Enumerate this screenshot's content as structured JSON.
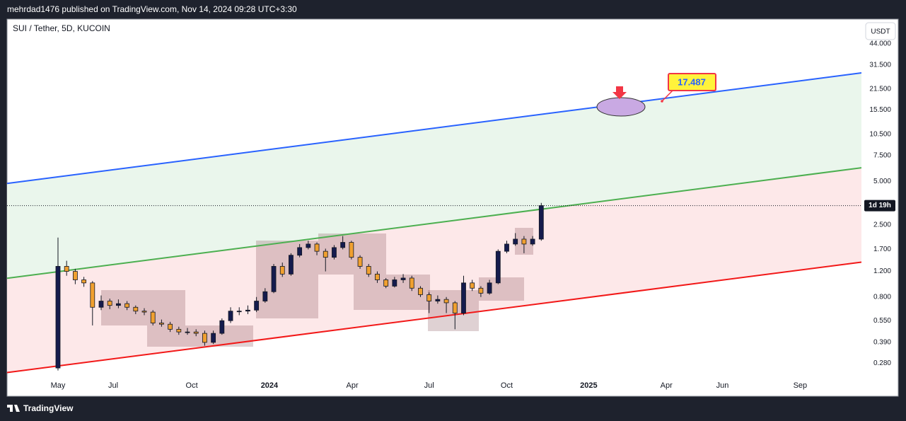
{
  "header": "mehrdad1476 published on TradingView.com, Nov 14, 2024 09:28 UTC+3:30",
  "footer": "TradingView",
  "chart_data": {
    "type": "candlestick",
    "title": "SUI / Tether, 5D, KUCOIN",
    "currency": "USDT",
    "countdown": "1d 19h",
    "annotation": "17.487",
    "x": [
      0,
      1,
      2,
      3,
      4,
      5,
      6,
      7,
      8,
      9,
      10,
      11,
      12,
      13,
      14,
      15,
      16,
      17,
      18,
      19,
      20,
      21,
      22,
      23,
      24,
      25,
      26,
      27,
      28,
      29,
      30,
      31,
      32,
      33,
      34,
      35,
      36,
      37,
      38,
      39,
      40,
      41,
      42,
      43,
      44,
      45,
      46,
      47,
      48,
      49,
      50,
      51,
      52,
      53,
      54,
      55,
      56
    ],
    "open": [
      0.26,
      1.3,
      1.2,
      1.05,
      1.0,
      0.68,
      0.75,
      0.7,
      0.72,
      0.68,
      0.64,
      0.63,
      0.53,
      0.52,
      0.48,
      0.46,
      0.46,
      0.45,
      0.39,
      0.45,
      0.55,
      0.64,
      0.64,
      0.65,
      0.75,
      0.87,
      1.3,
      1.15,
      1.55,
      1.75,
      1.85,
      1.65,
      1.5,
      1.75,
      1.9,
      1.5,
      1.3,
      1.15,
      1.05,
      0.95,
      1.05,
      1.08,
      0.92,
      0.83,
      0.75,
      0.77,
      0.73,
      0.62,
      1.0,
      0.92,
      0.85,
      1.0,
      1.65,
      1.85,
      2.0,
      1.85,
      2.0
    ],
    "high": [
      2.05,
      1.42,
      1.25,
      1.1,
      1.03,
      0.82,
      0.78,
      0.77,
      0.75,
      0.7,
      0.67,
      0.65,
      0.56,
      0.54,
      0.5,
      0.49,
      0.48,
      0.47,
      0.47,
      0.57,
      0.68,
      0.68,
      0.7,
      0.8,
      0.92,
      1.35,
      1.38,
      1.6,
      1.85,
      1.95,
      1.9,
      1.72,
      1.82,
      2.1,
      1.95,
      1.55,
      1.35,
      1.2,
      1.08,
      1.1,
      1.15,
      1.12,
      0.95,
      0.86,
      0.82,
      0.8,
      0.75,
      1.12,
      1.05,
      0.95,
      1.05,
      1.7,
      1.95,
      2.2,
      2.1,
      2.1,
      3.55
    ],
    "low": [
      0.25,
      1.12,
      0.98,
      0.94,
      0.51,
      0.65,
      0.66,
      0.67,
      0.65,
      0.61,
      0.6,
      0.51,
      0.5,
      0.46,
      0.44,
      0.44,
      0.43,
      0.37,
      0.38,
      0.44,
      0.53,
      0.6,
      0.61,
      0.63,
      0.73,
      0.85,
      1.1,
      1.12,
      1.5,
      1.7,
      1.55,
      1.2,
      1.45,
      1.7,
      1.45,
      1.25,
      1.1,
      1.0,
      0.92,
      0.93,
      1.0,
      0.88,
      0.8,
      0.62,
      0.72,
      0.62,
      0.48,
      0.6,
      0.88,
      0.8,
      0.83,
      0.98,
      1.6,
      1.8,
      1.6,
      1.8,
      1.95
    ],
    "close": [
      1.3,
      1.2,
      1.05,
      1.0,
      0.68,
      0.75,
      0.7,
      0.72,
      0.68,
      0.64,
      0.63,
      0.53,
      0.52,
      0.48,
      0.46,
      0.46,
      0.45,
      0.39,
      0.45,
      0.55,
      0.64,
      0.64,
      0.65,
      0.75,
      0.87,
      1.3,
      1.15,
      1.55,
      1.75,
      1.85,
      1.65,
      1.5,
      1.75,
      1.9,
      1.5,
      1.3,
      1.15,
      1.05,
      0.95,
      1.05,
      1.08,
      0.92,
      0.83,
      0.75,
      0.77,
      0.73,
      0.62,
      1.0,
      0.92,
      0.85,
      1.0,
      1.65,
      1.85,
      2.0,
      1.85,
      2.0,
      3.4
    ],
    "up_color": "#151b4d",
    "down_color": "#f0a030",
    "log_scale": true,
    "xlim": [
      -5.9,
      93.1
    ],
    "xticks": [
      {
        "value": 0,
        "label": "May"
      },
      {
        "value": 6.4,
        "label": "Jul"
      },
      {
        "value": 15.5,
        "label": "Oct"
      },
      {
        "value": 24.5,
        "label": "2024"
      },
      {
        "value": 34.1,
        "label": "Apr"
      },
      {
        "value": 43,
        "label": "Jul"
      },
      {
        "value": 52,
        "label": "Oct"
      },
      {
        "value": 61.5,
        "label": "2025"
      },
      {
        "value": 70.5,
        "label": "Apr"
      },
      {
        "value": 77,
        "label": "Jun"
      },
      {
        "value": 86,
        "label": "Sep"
      }
    ],
    "ylim": [
      0.22,
      63
    ],
    "yticks": [
      {
        "value": 44,
        "label": "44.000"
      },
      {
        "value": 31.5,
        "label": "31.500"
      },
      {
        "value": 21.5,
        "label": "21.500"
      },
      {
        "value": 15.5,
        "label": "15.500"
      },
      {
        "value": 10.5,
        "label": "10.500"
      },
      {
        "value": 7.5,
        "label": "7.500"
      },
      {
        "value": 5,
        "label": "5.000"
      },
      {
        "value": 2.5,
        "label": "2.500"
      },
      {
        "value": 1.7,
        "label": "1.700"
      },
      {
        "value": 1.2,
        "label": "1.200"
      },
      {
        "value": 0.8,
        "label": "0.800"
      },
      {
        "value": 0.55,
        "label": "0.550"
      },
      {
        "value": 0.39,
        "label": "0.390"
      },
      {
        "value": 0.28,
        "label": "0.280"
      }
    ],
    "channel": [
      {
        "color": "#2962ff",
        "start": 4.83,
        "end": 27.8
      },
      {
        "color": "#4caf50",
        "start": 1.076,
        "end": 6.19
      },
      {
        "color": "#f21818",
        "start": 0.242,
        "end": 1.39
      }
    ],
    "band_colors": [
      "#eaf6ec",
      "#fde8e9"
    ]
  }
}
